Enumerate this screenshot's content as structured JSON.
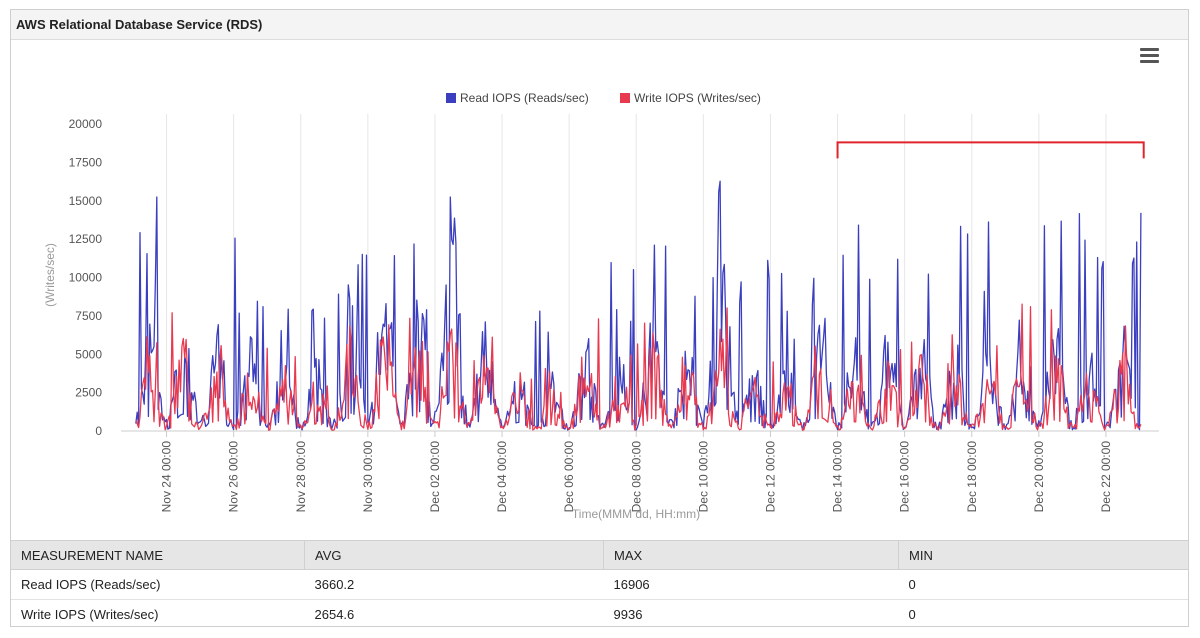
{
  "panel": {
    "title": "AWS Relational Database Service (RDS)"
  },
  "chart_data": {
    "type": "line",
    "title": "",
    "xlabel": "Time(MMM dd, HH:mm)",
    "ylabel": "(Writes/sec)",
    "ylim": [
      0,
      20000
    ],
    "yticks": [
      0,
      2500,
      5000,
      7500,
      10000,
      12500,
      15000,
      17500,
      20000
    ],
    "xlim": [
      "Nov 23 2:00",
      "Dec 23 1:00"
    ],
    "xticks": [
      "Nov 24 00:00",
      "Nov 26 00:00",
      "Nov 28 00:00",
      "Nov 30 00:00",
      "Dec 02 00:00",
      "Dec 04 00:00",
      "Dec 06 00:00",
      "Dec 08 00:00",
      "Dec 10 00:00",
      "Dec 12 00:00",
      "Dec 14 00:00",
      "Dec 16 00:00",
      "Dec 18 00:00",
      "Dec 20 00:00",
      "Dec 22 00:00"
    ],
    "grid": true,
    "legend": "top-center",
    "annotation": {
      "type": "bracket",
      "x_start": "Dec 14 00:00",
      "x_end": "Dec 23 03:00",
      "y": 18800,
      "color": "#e0242c"
    },
    "series": [
      {
        "name": "Read IOPS (Reads/sec)",
        "color": "#3b3fbf",
        "avg": 3660.2,
        "max": 16906,
        "min": 0,
        "x": [
          "Nov 23",
          "Nov 24",
          "Nov 25",
          "Nov 26",
          "Nov 27",
          "Nov 28",
          "Nov 29",
          "Nov 30",
          "Dec 01",
          "Dec 02",
          "Dec 03",
          "Dec 04",
          "Dec 05",
          "Dec 06",
          "Dec 07",
          "Dec 08",
          "Dec 09",
          "Dec 10",
          "Dec 11",
          "Dec 12",
          "Dec 13",
          "Dec 14",
          "Dec 15",
          "Dec 16",
          "Dec 17",
          "Dec 18",
          "Dec 19",
          "Dec 20",
          "Dec 21",
          "Dec 22"
        ],
        "daily_typical": [
          4800,
          5500,
          4600,
          4200,
          3600,
          3200,
          5800,
          7000,
          6400,
          10000,
          4600,
          2800,
          2600,
          4300,
          3400,
          5000,
          4300,
          10500,
          3200,
          2800,
          5200,
          4200,
          4400,
          4600,
          4100,
          4300,
          5000,
          4700,
          4100,
          4600
        ],
        "daily_peak": [
          15300,
          14300,
          12800,
          13000,
          11000,
          9300,
          14800,
          13500,
          13000,
          15900,
          12600,
          8700,
          8000,
          13900,
          12600,
          14300,
          13800,
          16906,
          12900,
          10700,
          13300,
          14000,
          15500,
          15700,
          14300,
          14800,
          14400,
          15300,
          15700,
          14300
        ]
      },
      {
        "name": "Write IOPS (Writes/sec)",
        "color": "#e8394f",
        "avg": 2654.6,
        "max": 9936,
        "min": 0,
        "x": [
          "Nov 23",
          "Nov 24",
          "Nov 25",
          "Nov 26",
          "Nov 27",
          "Nov 28",
          "Nov 29",
          "Nov 30",
          "Dec 01",
          "Dec 02",
          "Dec 03",
          "Dec 04",
          "Dec 05",
          "Dec 06",
          "Dec 07",
          "Dec 08",
          "Dec 09",
          "Dec 10",
          "Dec 11",
          "Dec 12",
          "Dec 13",
          "Dec 14",
          "Dec 15",
          "Dec 16",
          "Dec 17",
          "Dec 18",
          "Dec 19",
          "Dec 20",
          "Dec 21",
          "Dec 22"
        ],
        "daily_typical": [
          3500,
          4200,
          3300,
          3000,
          2600,
          2400,
          4300,
          5200,
          4600,
          4500,
          3400,
          2200,
          2100,
          3600,
          2900,
          4200,
          3600,
          4300,
          2500,
          2300,
          4300,
          3000,
          3100,
          3400,
          3000,
          3100,
          3500,
          3600,
          3100,
          3400
        ],
        "daily_peak": [
          7500,
          7800,
          6800,
          6500,
          5000,
          4800,
          9936,
          8300,
          7800,
          8500,
          6900,
          4500,
          4200,
          7600,
          6200,
          7700,
          7500,
          8300,
          6200,
          5600,
          8000,
          6900,
          6900,
          7500,
          6900,
          7000,
          9800,
          8000,
          7700,
          7300
        ]
      }
    ]
  },
  "table": {
    "headers": [
      "MEASUREMENT NAME",
      "AVG",
      "MAX",
      "MIN"
    ],
    "rows": [
      [
        "Read IOPS (Reads/sec)",
        "3660.2",
        "16906",
        "0"
      ],
      [
        "Write IOPS (Writes/sec)",
        "2654.6",
        "9936",
        "0"
      ]
    ]
  }
}
